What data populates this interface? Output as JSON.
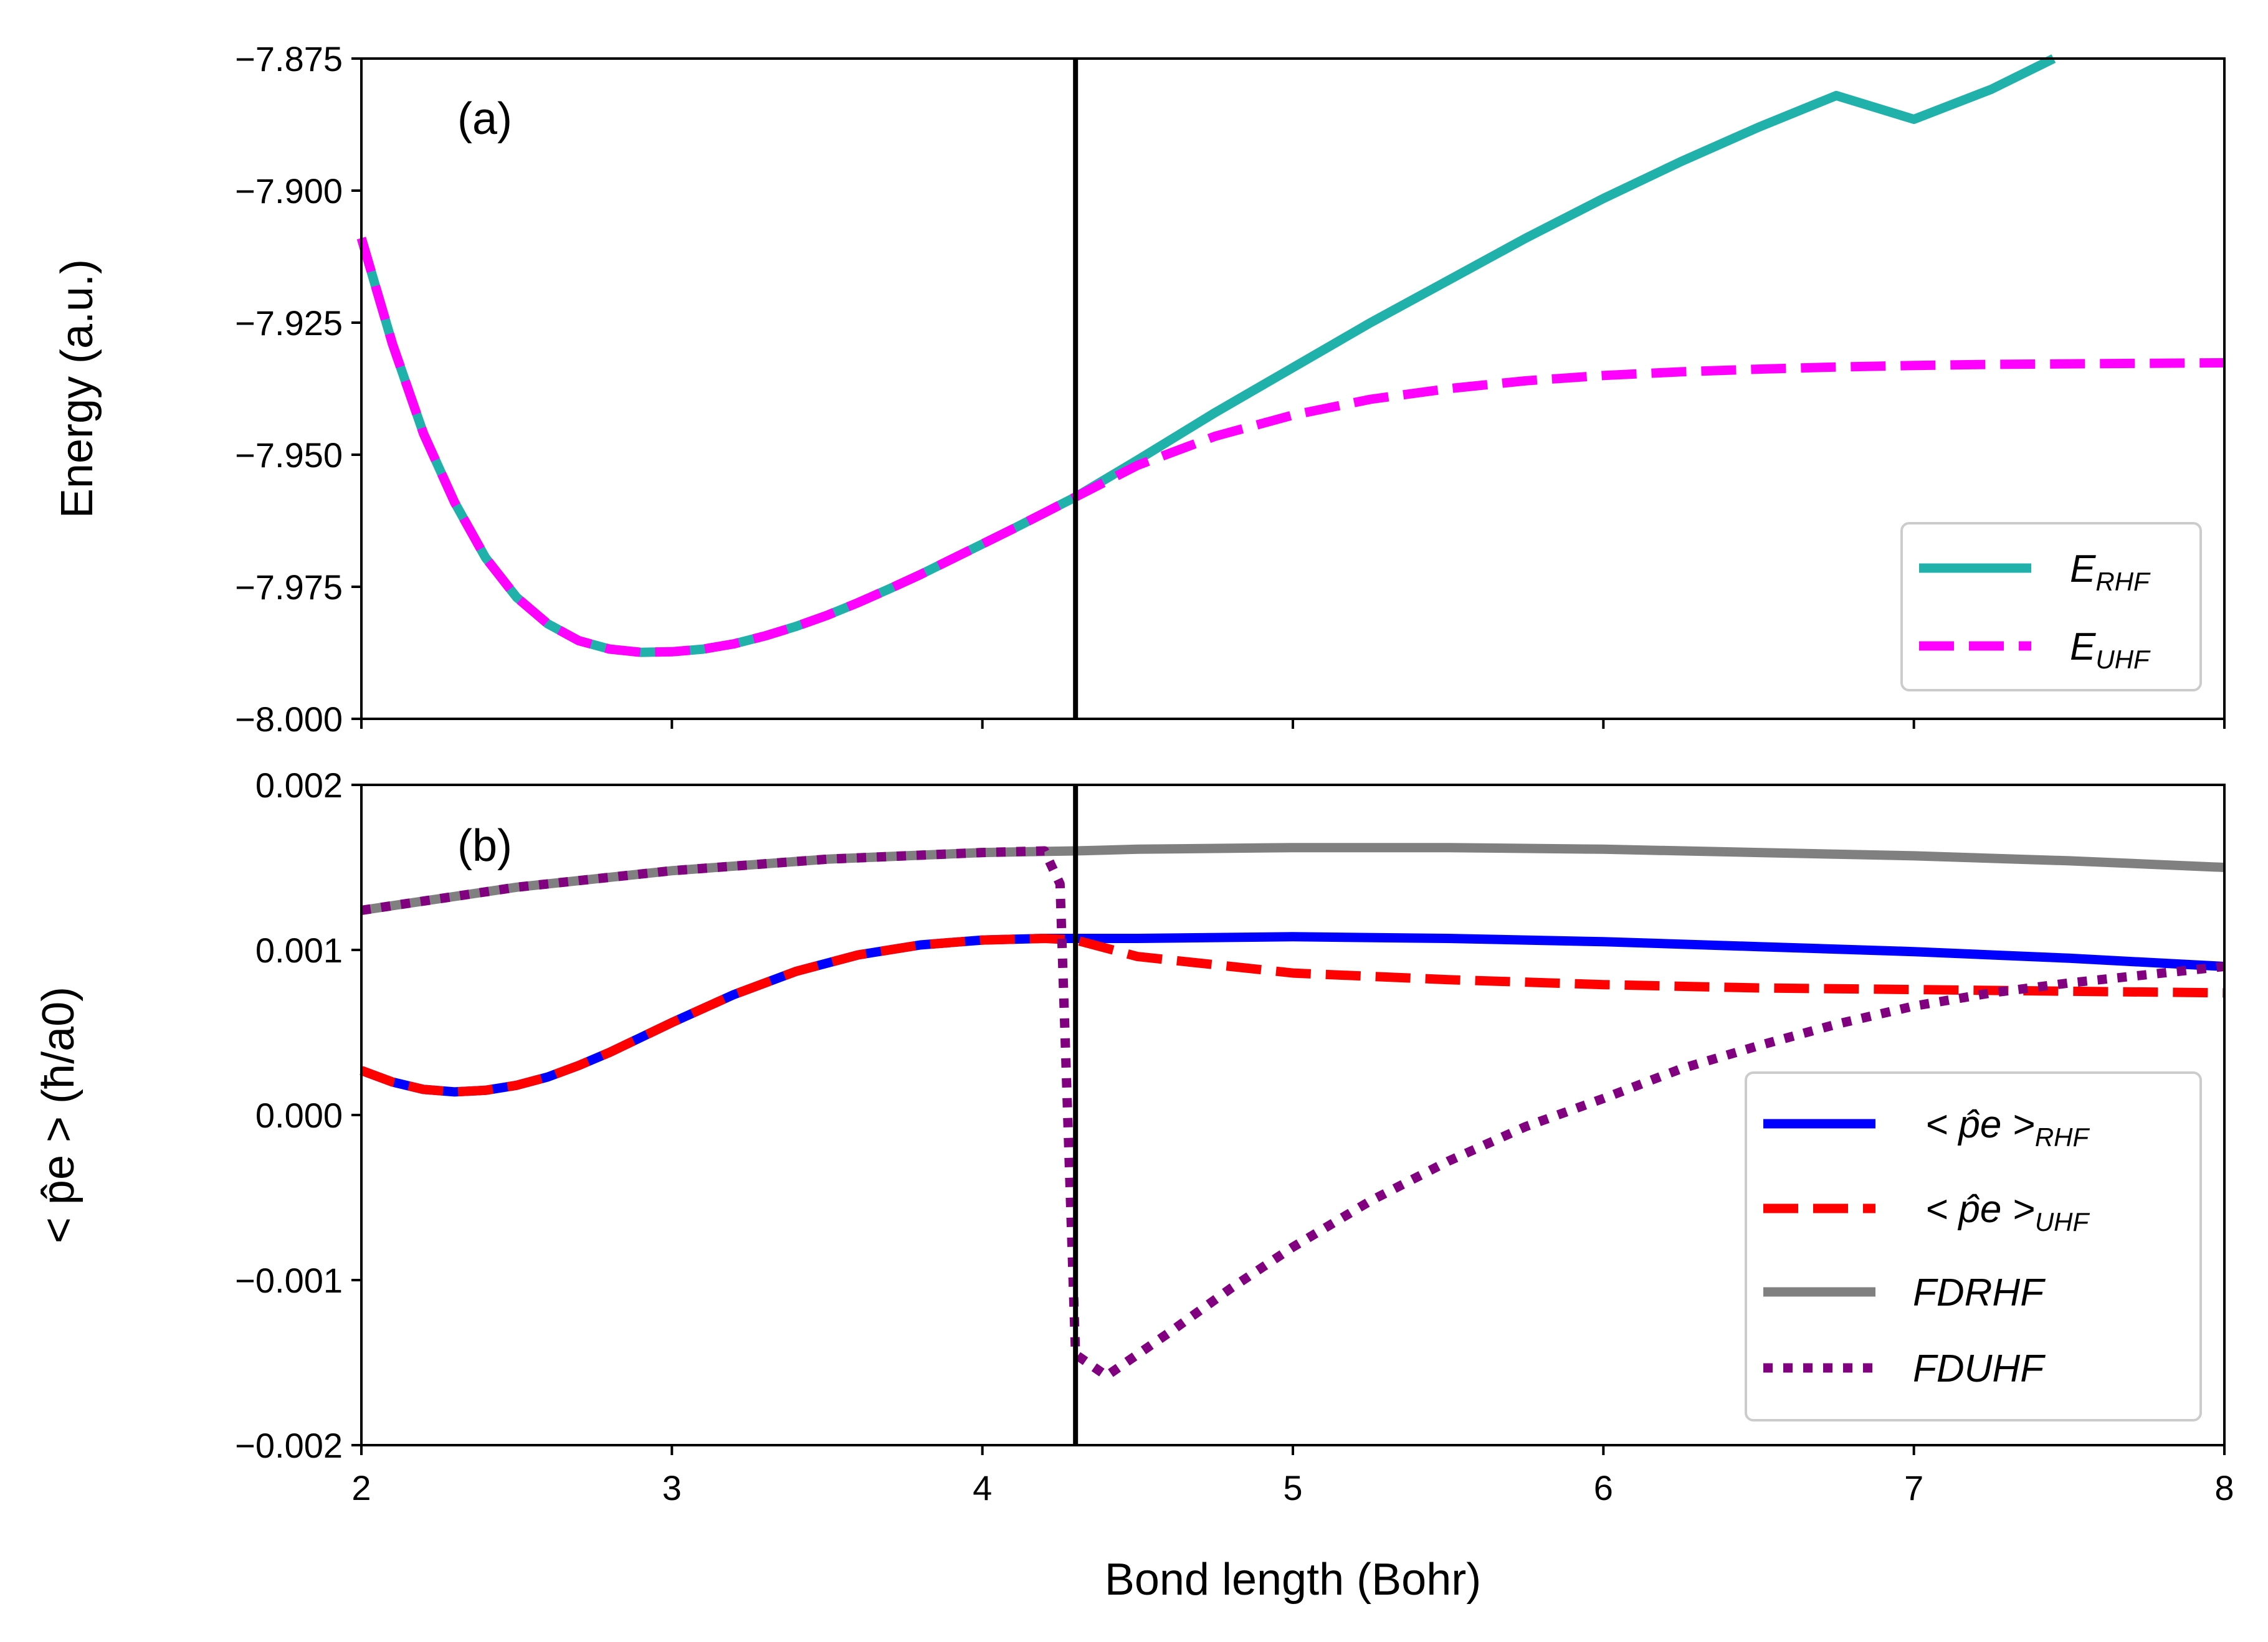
{
  "chart_data": [
    {
      "panel": "(a)",
      "type": "line",
      "xlabel": "",
      "ylabel": "Energy (a.u.)",
      "xlim": [
        2,
        8
      ],
      "ylim": [
        -8.0,
        -7.875
      ],
      "xticks": [
        2,
        3,
        4,
        5,
        6,
        7,
        8
      ],
      "yticks": [
        -8.0,
        -7.975,
        -7.95,
        -7.925,
        -7.9,
        -7.875
      ],
      "ytick_labels": [
        "−8.000",
        "−7.975",
        "−7.950",
        "−7.925",
        "−7.900",
        "−7.875"
      ],
      "vline_x": 4.3,
      "legend_position": "lower-right",
      "series": [
        {
          "name": "E_RHF",
          "label_main": "E",
          "label_sub": "RHF",
          "color": "#20b2aa",
          "style": "solid",
          "x": [
            2.0,
            2.1,
            2.2,
            2.3,
            2.4,
            2.5,
            2.6,
            2.7,
            2.8,
            2.9,
            3.0,
            3.1,
            3.2,
            3.3,
            3.4,
            3.5,
            3.6,
            3.7,
            3.8,
            3.9,
            4.0,
            4.1,
            4.2,
            4.3,
            4.5,
            4.75,
            5.0,
            5.25,
            5.5,
            5.75,
            6.0,
            6.25,
            6.5,
            6.75,
            7.0,
            7.25,
            7.45
          ],
          "y": [
            -7.909,
            -7.929,
            -7.946,
            -7.959,
            -7.9695,
            -7.977,
            -7.982,
            -7.9852,
            -7.9868,
            -7.9874,
            -7.9873,
            -7.9868,
            -7.9858,
            -7.9843,
            -7.9825,
            -7.9804,
            -7.978,
            -7.9754,
            -7.9727,
            -7.9698,
            -7.9669,
            -7.964,
            -7.961,
            -7.958,
            -7.951,
            -7.942,
            -7.9335,
            -7.925,
            -7.917,
            -7.909,
            -7.9015,
            -7.8945,
            -7.888,
            -7.882,
            -7.8865,
            -7.8808,
            -7.875
          ]
        },
        {
          "name": "E_UHF",
          "label_main": "E",
          "label_sub": "UHF",
          "color": "#ff00ff",
          "style": "dashed",
          "x": [
            2.0,
            2.1,
            2.2,
            2.3,
            2.4,
            2.5,
            2.6,
            2.7,
            2.8,
            2.9,
            3.0,
            3.1,
            3.2,
            3.3,
            3.4,
            3.5,
            3.6,
            3.7,
            3.8,
            3.9,
            4.0,
            4.1,
            4.2,
            4.3,
            4.5,
            4.75,
            5.0,
            5.25,
            5.5,
            5.75,
            6.0,
            6.25,
            6.5,
            6.75,
            7.0,
            7.25,
            7.5,
            7.75,
            8.0
          ],
          "y": [
            -7.909,
            -7.929,
            -7.946,
            -7.959,
            -7.9695,
            -7.977,
            -7.982,
            -7.9852,
            -7.9868,
            -7.9874,
            -7.9873,
            -7.9868,
            -7.9858,
            -7.9843,
            -7.9825,
            -7.9804,
            -7.978,
            -7.9754,
            -7.9727,
            -7.9698,
            -7.9669,
            -7.964,
            -7.961,
            -7.958,
            -7.952,
            -7.9465,
            -7.9425,
            -7.9395,
            -7.9375,
            -7.936,
            -7.935,
            -7.9343,
            -7.9338,
            -7.9334,
            -7.9331,
            -7.9329,
            -7.9328,
            -7.9327,
            -7.9326
          ]
        }
      ]
    },
    {
      "panel": "(b)",
      "type": "line",
      "xlabel": "Bond length (Bohr)",
      "ylabel": "< p̂e > (ħ/a0)",
      "xlim": [
        2,
        8
      ],
      "ylim": [
        -0.002,
        0.002
      ],
      "xticks": [
        2,
        3,
        4,
        5,
        6,
        7,
        8
      ],
      "xtick_labels": [
        "2",
        "3",
        "4",
        "5",
        "6",
        "7",
        "8"
      ],
      "yticks": [
        -0.002,
        -0.001,
        0.0,
        0.001,
        0.002
      ],
      "ytick_labels": [
        "−0.002",
        "−0.001",
        "0.000",
        "0.001",
        "0.002"
      ],
      "vline_x": 4.3,
      "legend_position": "lower-right",
      "series": [
        {
          "name": "<p_e>_RHF",
          "label_main": "< p̂e >",
          "label_sub": "RHF",
          "color": "#0000ff",
          "style": "solid",
          "x": [
            2.0,
            2.1,
            2.2,
            2.3,
            2.4,
            2.5,
            2.6,
            2.7,
            2.8,
            2.9,
            3.0,
            3.2,
            3.4,
            3.6,
            3.8,
            4.0,
            4.2,
            4.3,
            4.5,
            5.0,
            5.5,
            6.0,
            6.5,
            7.0,
            7.5,
            8.0
          ],
          "y": [
            0.00027,
            0.0002,
            0.000155,
            0.00014,
            0.00015,
            0.00018,
            0.00023,
            0.0003,
            0.00038,
            0.00047,
            0.00056,
            0.00073,
            0.00087,
            0.00097,
            0.00103,
            0.00106,
            0.00107,
            0.00107,
            0.00107,
            0.00108,
            0.00107,
            0.00105,
            0.00102,
            0.00099,
            0.00095,
            0.0009
          ]
        },
        {
          "name": "<p_e>_UHF",
          "label_main": "< p̂e >",
          "label_sub": "UHF",
          "color": "#ff0000",
          "style": "dashed",
          "x": [
            2.0,
            2.1,
            2.2,
            2.3,
            2.4,
            2.5,
            2.6,
            2.7,
            2.8,
            2.9,
            3.0,
            3.2,
            3.4,
            3.6,
            3.8,
            4.0,
            4.2,
            4.3,
            4.5,
            5.0,
            5.5,
            6.0,
            6.5,
            7.0,
            7.5,
            8.0
          ],
          "y": [
            0.00027,
            0.0002,
            0.000155,
            0.00014,
            0.00015,
            0.00018,
            0.00023,
            0.0003,
            0.00038,
            0.00047,
            0.00056,
            0.00073,
            0.00087,
            0.00097,
            0.00103,
            0.00106,
            0.00107,
            0.00106,
            0.00096,
            0.00086,
            0.00082,
            0.00079,
            0.00077,
            0.00076,
            0.00075,
            0.00074
          ]
        },
        {
          "name": "FDRHF",
          "label_main": "FDRHF",
          "label_sub": "",
          "color": "#808080",
          "style": "solid",
          "x": [
            2.0,
            2.5,
            3.0,
            3.5,
            4.0,
            4.3,
            4.5,
            5.0,
            5.5,
            6.0,
            6.5,
            7.0,
            7.5,
            8.0
          ],
          "y": [
            0.00124,
            0.00138,
            0.00148,
            0.00155,
            0.00159,
            0.0016,
            0.00161,
            0.00162,
            0.00162,
            0.00161,
            0.00159,
            0.00157,
            0.00154,
            0.0015
          ]
        },
        {
          "name": "FDUHF",
          "label_main": "FDUHF",
          "label_sub": "",
          "color": "#800080",
          "style": "dotted",
          "x": [
            2.0,
            2.5,
            3.0,
            3.5,
            4.0,
            4.2,
            4.25,
            4.3,
            4.4,
            4.6,
            4.8,
            5.0,
            5.25,
            5.5,
            5.75,
            6.0,
            6.25,
            6.5,
            6.75,
            7.0,
            7.25,
            7.5,
            7.75,
            8.0
          ],
          "y": [
            0.00124,
            0.00138,
            0.00148,
            0.00155,
            0.00159,
            0.0016,
            0.0014,
            -0.00145,
            -0.00158,
            -0.00132,
            -0.00105,
            -0.0008,
            -0.00052,
            -0.00028,
            -7e-05,
            0.0001,
            0.00028,
            0.00042,
            0.00055,
            0.00066,
            0.00074,
            0.0008,
            0.00085,
            0.0009
          ]
        }
      ]
    }
  ]
}
